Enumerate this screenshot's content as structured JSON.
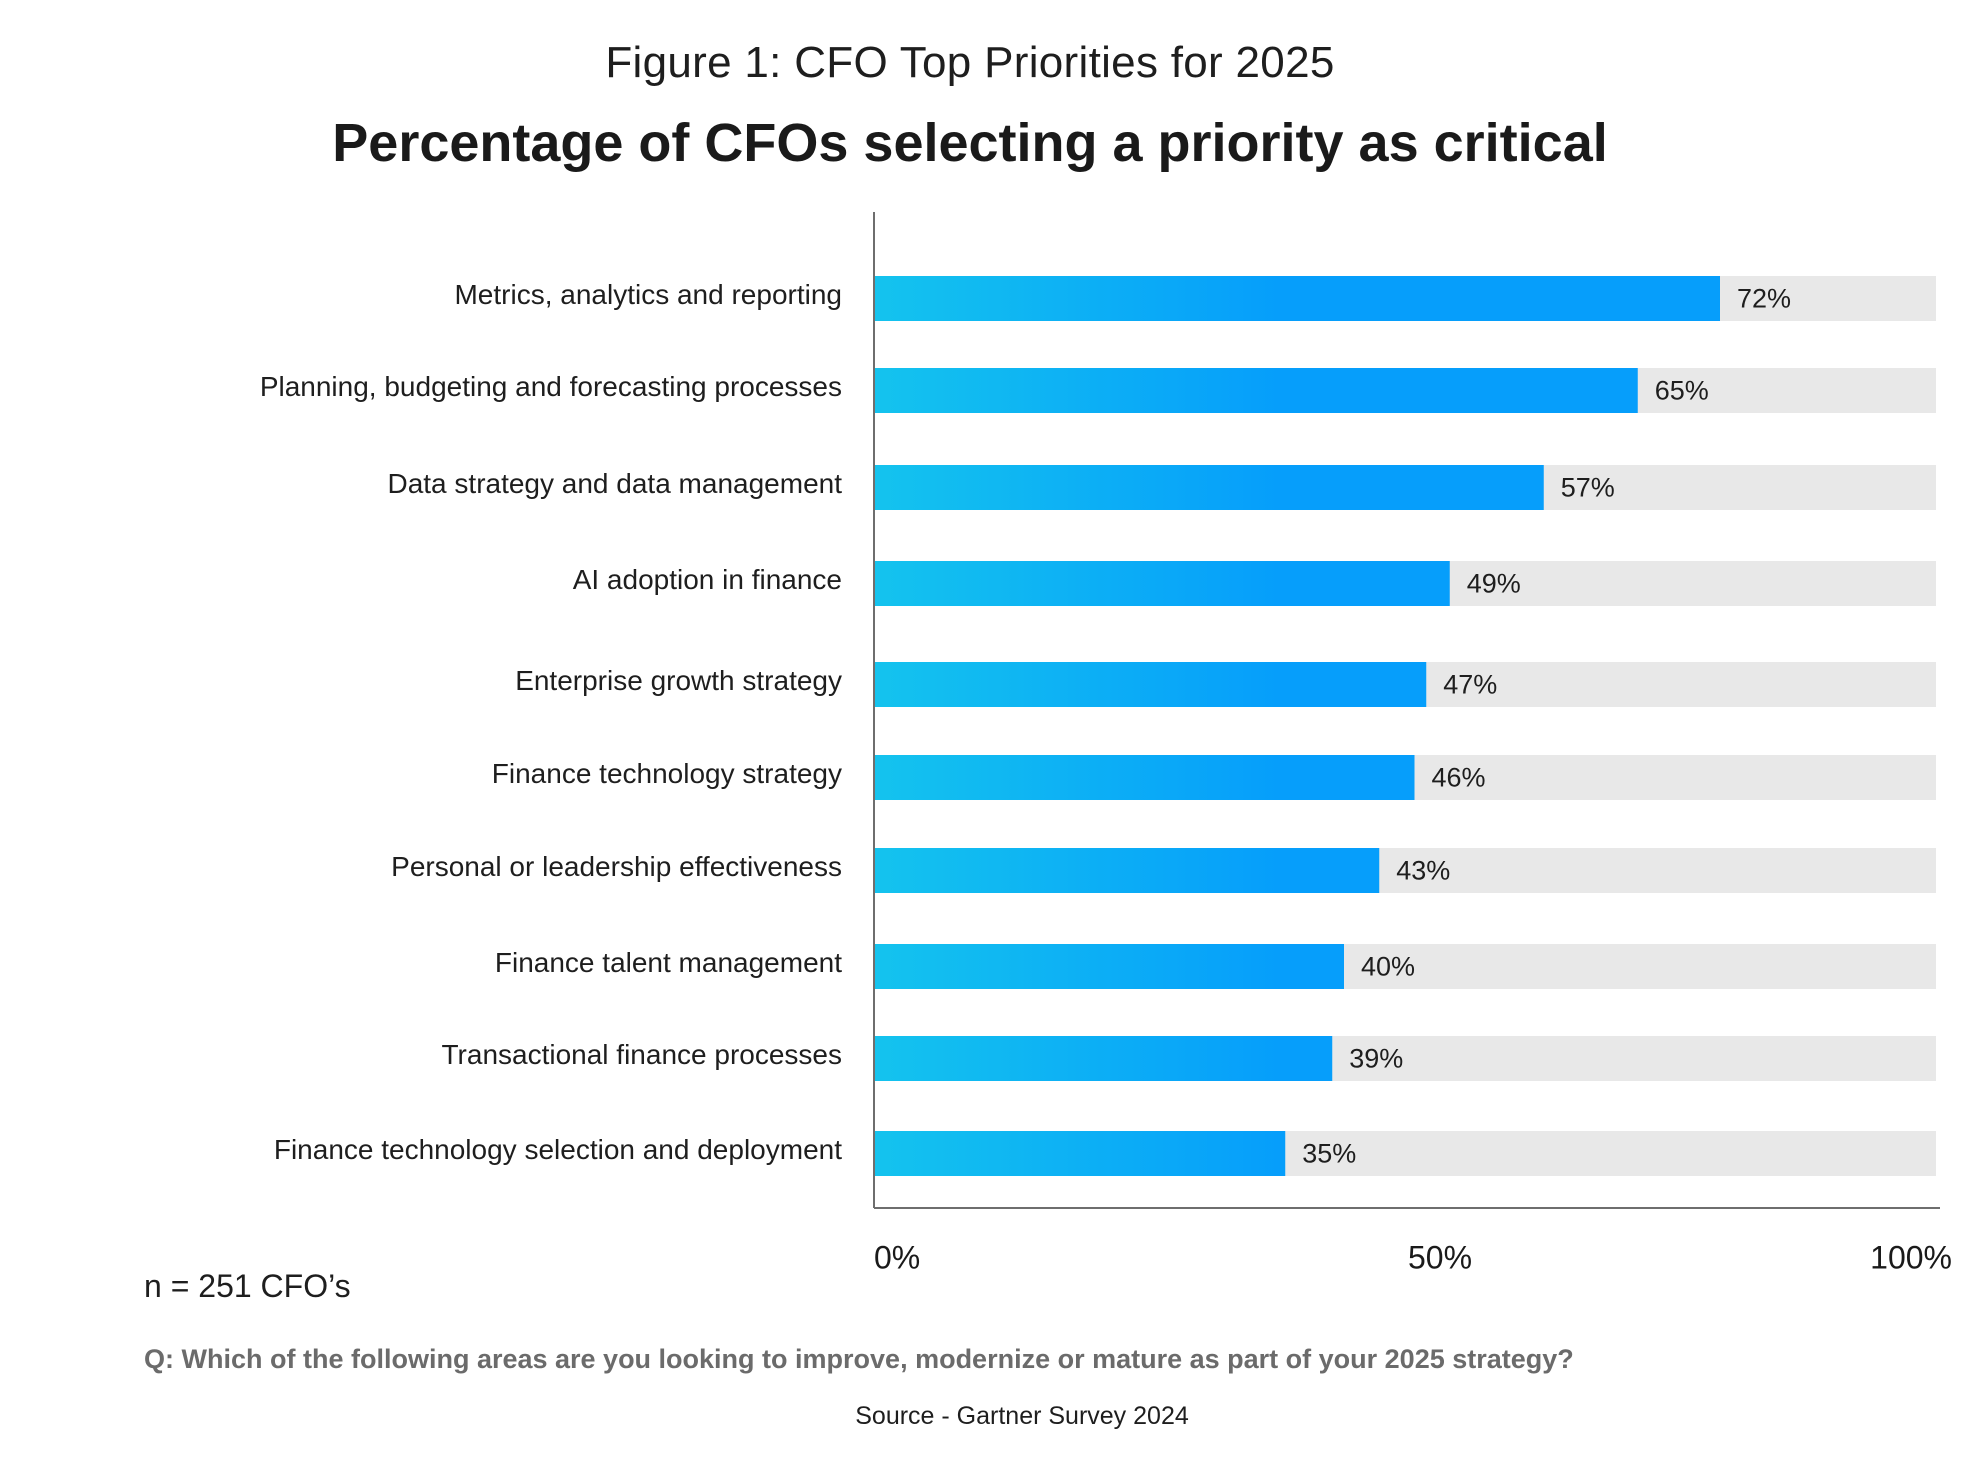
{
  "figure_title": "Figure 1: CFO Top Priorities for 2025",
  "chart_data": {
    "type": "bar",
    "orientation": "horizontal",
    "title": "Percentage of CFOs selecting a priority as critical",
    "xlabel": "",
    "ylabel": "",
    "xlim": [
      0,
      100
    ],
    "grid": false,
    "legend": "none",
    "categories": [
      "Metrics, analytics and reporting",
      "Planning, budgeting and forecasting processes",
      "Data strategy and data management",
      "AI adoption in finance",
      "Enterprise growth strategy",
      "Finance technology strategy",
      "Personal or leadership effectiveness",
      "Finance talent management",
      "Transactional finance processes",
      "Finance technology selection and deployment"
    ],
    "values": [
      72,
      65,
      57,
      49,
      47,
      46,
      43,
      40,
      39,
      35
    ],
    "value_labels": [
      "72%",
      "65%",
      "57%",
      "49%",
      "47%",
      "46%",
      "43%",
      "40%",
      "39%",
      "35%"
    ],
    "x_ticks": [
      0,
      50,
      100
    ],
    "x_tick_labels": [
      "0%",
      "50%",
      "100%"
    ],
    "colors": {
      "bar_gradient_start": "#14c3ee",
      "bar_gradient_end": "#069efb",
      "track": "#e8e8e8",
      "axis": "#6e6e6e"
    }
  },
  "footer": {
    "sample_note": "n = 251 CFO’s",
    "question": "Q: Which of the following areas are you looking to improve, modernize or mature as part of your 2025 strategy?",
    "source": "Source - Gartner Survey 2024"
  }
}
